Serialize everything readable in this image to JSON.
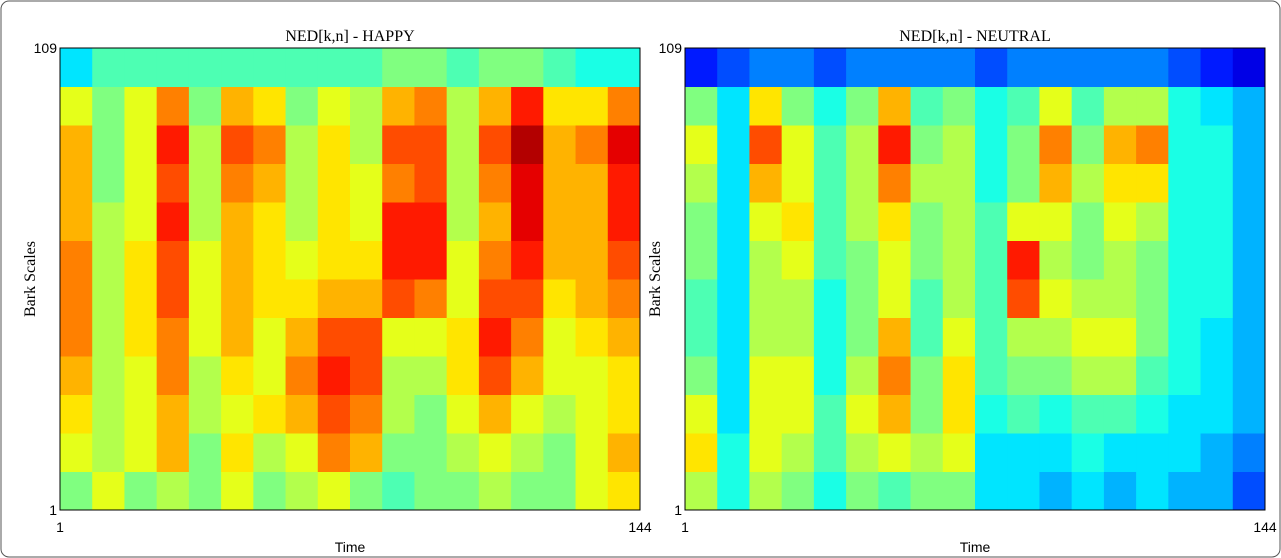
{
  "chart_data": [
    {
      "type": "heatmap",
      "title": "NED[k,n] - HAPPY",
      "xlabel": "Time",
      "ylabel": "Bark Scales",
      "xlim": [
        1,
        144
      ],
      "ylim": [
        1,
        109
      ],
      "xticks": [
        1,
        144
      ],
      "yticks": [
        1,
        109
      ],
      "colormap": "jet",
      "zlim": [
        0,
        1
      ],
      "z": [
        [
          0.5,
          0.6,
          0.5,
          0.55,
          0.5,
          0.6,
          0.5,
          0.55,
          0.6,
          0.5,
          0.45,
          0.5,
          0.5,
          0.55,
          0.5,
          0.5,
          0.6,
          0.65
        ],
        [
          0.6,
          0.55,
          0.6,
          0.7,
          0.5,
          0.65,
          0.55,
          0.6,
          0.75,
          0.7,
          0.5,
          0.5,
          0.55,
          0.6,
          0.55,
          0.5,
          0.6,
          0.7
        ],
        [
          0.65,
          0.55,
          0.6,
          0.7,
          0.55,
          0.6,
          0.65,
          0.7,
          0.8,
          0.75,
          0.55,
          0.5,
          0.6,
          0.7,
          0.6,
          0.55,
          0.6,
          0.65
        ],
        [
          0.7,
          0.55,
          0.6,
          0.75,
          0.55,
          0.65,
          0.6,
          0.75,
          0.85,
          0.8,
          0.55,
          0.55,
          0.65,
          0.8,
          0.7,
          0.6,
          0.6,
          0.65
        ],
        [
          0.75,
          0.55,
          0.65,
          0.75,
          0.6,
          0.7,
          0.6,
          0.7,
          0.8,
          0.8,
          0.6,
          0.6,
          0.65,
          0.85,
          0.75,
          0.6,
          0.65,
          0.7
        ],
        [
          0.75,
          0.55,
          0.65,
          0.8,
          0.6,
          0.7,
          0.65,
          0.65,
          0.7,
          0.7,
          0.8,
          0.75,
          0.6,
          0.8,
          0.8,
          0.65,
          0.7,
          0.75
        ],
        [
          0.75,
          0.55,
          0.65,
          0.8,
          0.6,
          0.7,
          0.65,
          0.6,
          0.65,
          0.65,
          0.85,
          0.85,
          0.6,
          0.75,
          0.85,
          0.7,
          0.7,
          0.8
        ],
        [
          0.7,
          0.55,
          0.6,
          0.85,
          0.55,
          0.7,
          0.65,
          0.55,
          0.65,
          0.6,
          0.85,
          0.85,
          0.55,
          0.7,
          0.9,
          0.7,
          0.7,
          0.85
        ],
        [
          0.7,
          0.5,
          0.6,
          0.8,
          0.55,
          0.75,
          0.7,
          0.55,
          0.65,
          0.6,
          0.75,
          0.8,
          0.55,
          0.75,
          0.9,
          0.7,
          0.7,
          0.85
        ],
        [
          0.7,
          0.5,
          0.6,
          0.85,
          0.55,
          0.8,
          0.75,
          0.55,
          0.65,
          0.55,
          0.8,
          0.8,
          0.55,
          0.8,
          0.95,
          0.7,
          0.75,
          0.9
        ],
        [
          0.6,
          0.5,
          0.6,
          0.75,
          0.5,
          0.7,
          0.65,
          0.5,
          0.6,
          0.55,
          0.7,
          0.75,
          0.55,
          0.7,
          0.85,
          0.65,
          0.65,
          0.75
        ],
        [
          0.35,
          0.45,
          0.45,
          0.45,
          0.45,
          0.45,
          0.45,
          0.45,
          0.45,
          0.45,
          0.5,
          0.5,
          0.45,
          0.5,
          0.5,
          0.45,
          0.4,
          0.4
        ]
      ]
    },
    {
      "type": "heatmap",
      "title": "NED[k,n] - NEUTRAL",
      "xlabel": "Time",
      "ylabel": "Bark Scales",
      "xlim": [
        1,
        144
      ],
      "ylim": [
        1,
        109
      ],
      "xticks": [
        1,
        144
      ],
      "yticks": [
        1,
        109
      ],
      "colormap": "jet",
      "zlim": [
        0,
        1
      ],
      "z": [
        [
          0.55,
          0.4,
          0.55,
          0.5,
          0.4,
          0.5,
          0.45,
          0.5,
          0.5,
          0.35,
          0.35,
          0.3,
          0.35,
          0.3,
          0.35,
          0.3,
          0.3,
          0.2
        ],
        [
          0.65,
          0.4,
          0.6,
          0.55,
          0.45,
          0.55,
          0.6,
          0.55,
          0.6,
          0.35,
          0.35,
          0.35,
          0.4,
          0.35,
          0.35,
          0.35,
          0.3,
          0.25
        ],
        [
          0.6,
          0.35,
          0.6,
          0.6,
          0.45,
          0.6,
          0.7,
          0.5,
          0.65,
          0.4,
          0.45,
          0.4,
          0.45,
          0.45,
          0.4,
          0.35,
          0.35,
          0.3
        ],
        [
          0.5,
          0.35,
          0.6,
          0.6,
          0.4,
          0.55,
          0.75,
          0.5,
          0.65,
          0.45,
          0.5,
          0.5,
          0.55,
          0.55,
          0.45,
          0.4,
          0.35,
          0.3
        ],
        [
          0.45,
          0.35,
          0.55,
          0.55,
          0.4,
          0.5,
          0.7,
          0.45,
          0.6,
          0.45,
          0.55,
          0.55,
          0.6,
          0.6,
          0.5,
          0.4,
          0.35,
          0.3
        ],
        [
          0.45,
          0.35,
          0.55,
          0.55,
          0.4,
          0.5,
          0.6,
          0.45,
          0.55,
          0.45,
          0.8,
          0.6,
          0.55,
          0.55,
          0.5,
          0.4,
          0.4,
          0.3
        ],
        [
          0.5,
          0.35,
          0.55,
          0.6,
          0.45,
          0.5,
          0.6,
          0.5,
          0.55,
          0.45,
          0.85,
          0.55,
          0.5,
          0.55,
          0.5,
          0.4,
          0.4,
          0.3
        ],
        [
          0.5,
          0.35,
          0.6,
          0.65,
          0.45,
          0.55,
          0.65,
          0.5,
          0.55,
          0.45,
          0.6,
          0.6,
          0.5,
          0.6,
          0.55,
          0.4,
          0.4,
          0.3
        ],
        [
          0.55,
          0.35,
          0.7,
          0.6,
          0.45,
          0.55,
          0.75,
          0.55,
          0.55,
          0.4,
          0.5,
          0.7,
          0.55,
          0.65,
          0.65,
          0.4,
          0.4,
          0.3
        ],
        [
          0.6,
          0.35,
          0.8,
          0.6,
          0.45,
          0.55,
          0.85,
          0.5,
          0.55,
          0.4,
          0.5,
          0.75,
          0.5,
          0.7,
          0.75,
          0.4,
          0.4,
          0.3
        ],
        [
          0.5,
          0.35,
          0.65,
          0.5,
          0.4,
          0.5,
          0.7,
          0.45,
          0.5,
          0.4,
          0.45,
          0.6,
          0.45,
          0.55,
          0.55,
          0.4,
          0.35,
          0.3
        ],
        [
          0.15,
          0.2,
          0.25,
          0.25,
          0.2,
          0.25,
          0.25,
          0.25,
          0.25,
          0.2,
          0.25,
          0.25,
          0.25,
          0.25,
          0.25,
          0.2,
          0.15,
          0.1
        ]
      ]
    }
  ]
}
